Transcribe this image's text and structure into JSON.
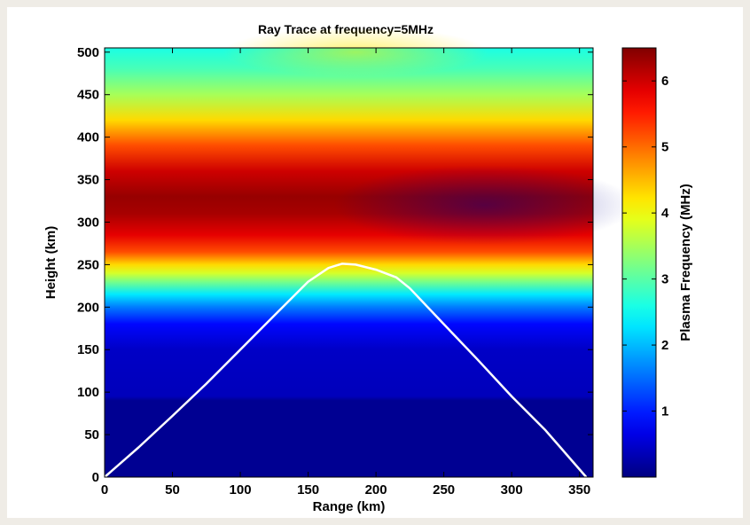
{
  "chart_data": {
    "type": "heatmap",
    "title": "Ray Trace at frequency=5MHz",
    "xlabel": "Range (km)",
    "ylabel": "Height (km)",
    "xlim": [
      0,
      360
    ],
    "ylim": [
      0,
      505
    ],
    "xticks": [
      0,
      50,
      100,
      150,
      200,
      250,
      300,
      350
    ],
    "yticks": [
      0,
      50,
      100,
      150,
      200,
      250,
      300,
      350,
      400,
      450,
      500
    ],
    "grid": false,
    "colormap": "jet",
    "colorbar": {
      "label": "Plasma Frequency (MHz)",
      "range": [
        0,
        6.5
      ],
      "ticks": [
        1,
        2,
        3,
        4,
        5,
        6
      ]
    },
    "plasma_frequency_profile": {
      "height": [
        0,
        90,
        95,
        150,
        180,
        200,
        215,
        230,
        240,
        250,
        265,
        285,
        310,
        330,
        360,
        390,
        420,
        450,
        480,
        505
      ],
      "values": [
        0.12,
        0.12,
        0.38,
        0.45,
        0.85,
        1.6,
        2.3,
        3.2,
        3.8,
        4.3,
        5.2,
        5.85,
        6.25,
        6.35,
        6.0,
        5.2,
        4.3,
        3.5,
        2.9,
        2.6
      ]
    },
    "series": [
      {
        "name": "",
        "color": "#ffffff",
        "x": [
          0,
          25,
          50,
          75,
          100,
          125,
          150,
          165,
          175,
          185,
          200,
          215,
          225,
          250,
          275,
          300,
          325,
          355
        ],
        "y": [
          0,
          35,
          72,
          110,
          150,
          190,
          230,
          246,
          251,
          250,
          244,
          235,
          222,
          180,
          138,
          95,
          55,
          0
        ]
      }
    ]
  }
}
